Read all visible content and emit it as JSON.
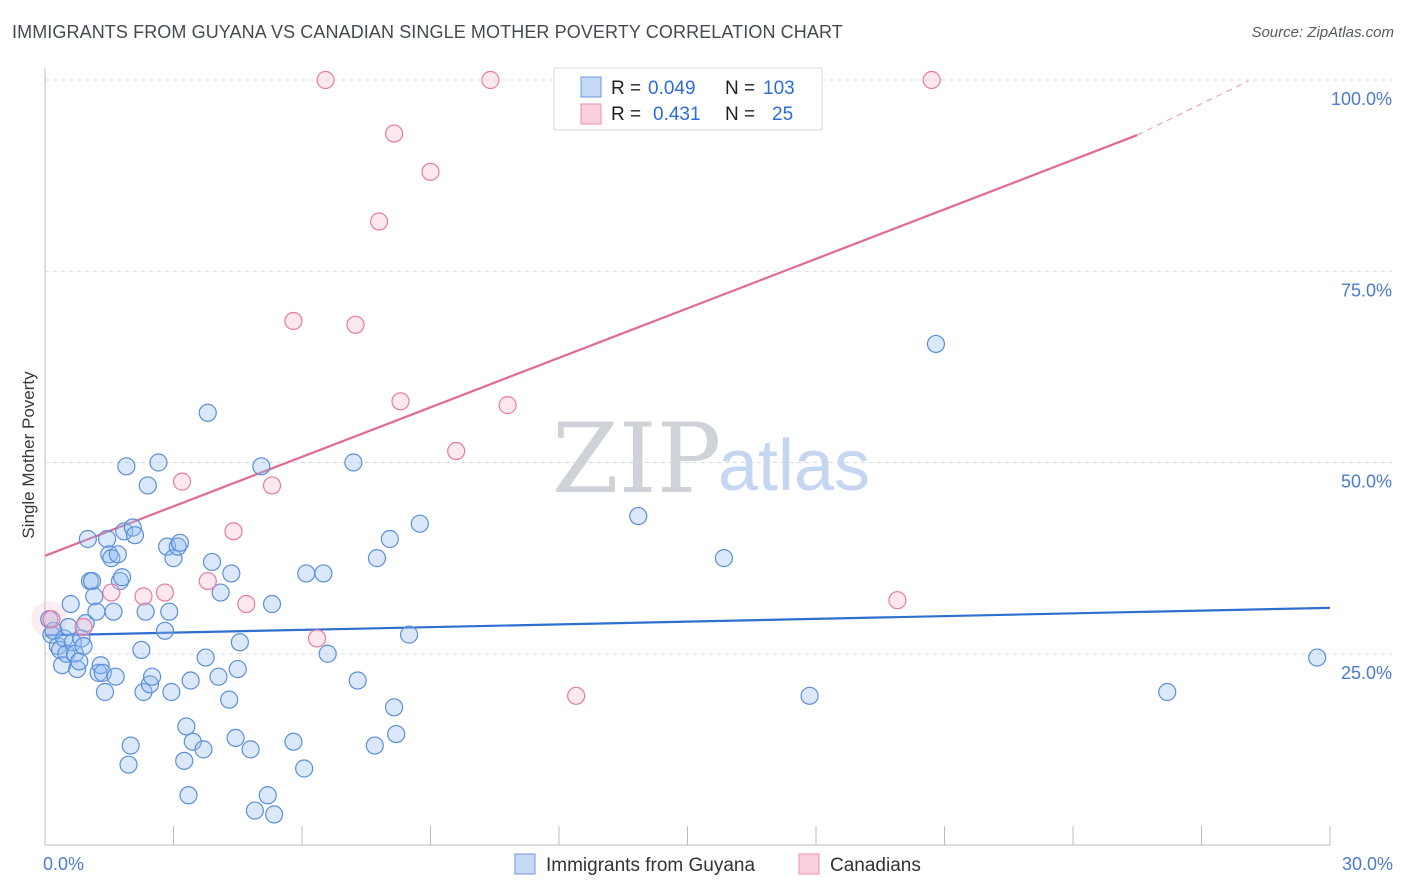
{
  "title": "IMMIGRANTS FROM GUYANA VS CANADIAN SINGLE MOTHER POVERTY CORRELATION CHART",
  "source": "Source: ZipAtlas.com",
  "watermark": {
    "zip": "ZIP",
    "atlas": "atlas"
  },
  "legend_stats": [
    {
      "r_label": "R =",
      "r_value": "0.049",
      "n_label": "N =",
      "n_value": "103"
    },
    {
      "r_label": "R =",
      "r_value": "0.431",
      "n_label": "N =",
      "n_value": "25"
    }
  ],
  "chart_data": {
    "type": "scatter",
    "title": "IMMIGRANTS FROM GUYANA VS CANADIAN SINGLE MOTHER POVERTY CORRELATION CHART",
    "xlabel": "",
    "ylabel": "Single Mother Poverty",
    "xlim": [
      0,
      30
    ],
    "ylim": [
      0,
      100
    ],
    "x_tick_labels": [
      "0.0%",
      "30.0%"
    ],
    "y_tick_labels": [
      "25.0%",
      "50.0%",
      "75.0%",
      "100.0%"
    ],
    "y_ticks": [
      25,
      50,
      75,
      100
    ],
    "grid": true,
    "legend_position": "bottom",
    "colors": {
      "guyana": "#5b8fd9",
      "canadians": "#e87aa0",
      "guyana_line": "#2f6fcf",
      "canadians_line": "#e06a94"
    },
    "series": [
      {
        "name": "Immigrants from Guyana",
        "color": "#5b8fd9",
        "trend": {
          "x": [
            0,
            30
          ],
          "y": [
            27.4,
            31.0
          ]
        },
        "points": [
          [
            0.1,
            29.5
          ],
          [
            0.15,
            27.5
          ],
          [
            0.2,
            28.0
          ],
          [
            0.3,
            26.0
          ],
          [
            0.35,
            25.5
          ],
          [
            0.4,
            23.5
          ],
          [
            0.45,
            27.0
          ],
          [
            0.5,
            25.0
          ],
          [
            0.55,
            28.5
          ],
          [
            0.6,
            31.5
          ],
          [
            0.65,
            26.5
          ],
          [
            0.7,
            25.0
          ],
          [
            0.75,
            23.0
          ],
          [
            0.8,
            24.0
          ],
          [
            0.85,
            27.0
          ],
          [
            0.9,
            26.0
          ],
          [
            0.95,
            29.0
          ],
          [
            1.0,
            40.0
          ],
          [
            1.05,
            34.5
          ],
          [
            1.1,
            34.5
          ],
          [
            1.15,
            32.5
          ],
          [
            1.2,
            30.5
          ],
          [
            1.25,
            22.5
          ],
          [
            1.3,
            23.5
          ],
          [
            1.35,
            22.5
          ],
          [
            1.4,
            20.0
          ],
          [
            1.45,
            40.0
          ],
          [
            1.5,
            38.0
          ],
          [
            1.55,
            37.5
          ],
          [
            1.6,
            30.5
          ],
          [
            1.65,
            22.0
          ],
          [
            1.7,
            38.0
          ],
          [
            1.75,
            34.5
          ],
          [
            1.8,
            35.0
          ],
          [
            1.85,
            41.0
          ],
          [
            1.9,
            49.5
          ],
          [
            1.95,
            10.5
          ],
          [
            2.0,
            13.0
          ],
          [
            2.05,
            41.5
          ],
          [
            2.1,
            40.5
          ],
          [
            2.25,
            25.5
          ],
          [
            2.3,
            20.0
          ],
          [
            2.35,
            30.5
          ],
          [
            2.4,
            47.0
          ],
          [
            2.45,
            21.0
          ],
          [
            2.5,
            22.0
          ],
          [
            2.65,
            50.0
          ],
          [
            2.8,
            28.0
          ],
          [
            2.85,
            39.0
          ],
          [
            2.9,
            30.5
          ],
          [
            2.95,
            20.0
          ],
          [
            3.0,
            37.5
          ],
          [
            3.1,
            39.0
          ],
          [
            3.15,
            39.5
          ],
          [
            3.25,
            11.0
          ],
          [
            3.3,
            15.5
          ],
          [
            3.35,
            6.5
          ],
          [
            3.4,
            21.5
          ],
          [
            3.45,
            13.5
          ],
          [
            3.7,
            12.5
          ],
          [
            3.75,
            24.5
          ],
          [
            3.8,
            56.5
          ],
          [
            3.9,
            37.0
          ],
          [
            4.05,
            22.0
          ],
          [
            4.1,
            33.0
          ],
          [
            4.3,
            19.0
          ],
          [
            4.35,
            35.5
          ],
          [
            4.45,
            14.0
          ],
          [
            4.5,
            23.0
          ],
          [
            4.55,
            26.5
          ],
          [
            4.8,
            12.5
          ],
          [
            4.9,
            4.5
          ],
          [
            5.05,
            49.5
          ],
          [
            5.2,
            6.5
          ],
          [
            5.3,
            31.5
          ],
          [
            5.35,
            4.0
          ],
          [
            5.8,
            13.5
          ],
          [
            6.05,
            10.0
          ],
          [
            6.1,
            35.5
          ],
          [
            6.5,
            35.5
          ],
          [
            6.6,
            25.0
          ],
          [
            7.2,
            50.0
          ],
          [
            7.3,
            21.5
          ],
          [
            7.7,
            13.0
          ],
          [
            7.75,
            37.5
          ],
          [
            8.05,
            40.0
          ],
          [
            8.15,
            18.0
          ],
          [
            8.2,
            14.5
          ],
          [
            8.5,
            27.5
          ],
          [
            8.75,
            42.0
          ],
          [
            13.85,
            43.0
          ],
          [
            15.85,
            37.5
          ],
          [
            17.85,
            19.5
          ],
          [
            20.8,
            65.5
          ],
          [
            26.2,
            20.0
          ],
          [
            29.7,
            24.5
          ]
        ]
      },
      {
        "name": "Canadians",
        "color": "#e87aa0",
        "trend": {
          "x": [
            0,
            25.5
          ],
          "y": [
            37.8,
            92.8
          ]
        },
        "trend_dashed": {
          "x": [
            25.5,
            28.1
          ],
          "y": [
            92.8,
            99.9
          ]
        },
        "points": [
          [
            0.15,
            29.5
          ],
          [
            0.9,
            28.5
          ],
          [
            1.55,
            33.0
          ],
          [
            2.3,
            32.5
          ],
          [
            2.8,
            33.0
          ],
          [
            3.2,
            47.5
          ],
          [
            3.8,
            34.5
          ],
          [
            4.4,
            41.0
          ],
          [
            4.7,
            31.5
          ],
          [
            5.3,
            47.0
          ],
          [
            5.8,
            68.5
          ],
          [
            6.35,
            27.0
          ],
          [
            6.55,
            100.0
          ],
          [
            7.25,
            68.0
          ],
          [
            7.8,
            81.5
          ],
          [
            8.15,
            93.0
          ],
          [
            8.3,
            58.0
          ],
          [
            9.0,
            88.0
          ],
          [
            9.6,
            51.5
          ],
          [
            10.4,
            100.0
          ],
          [
            10.8,
            57.5
          ],
          [
            12.4,
            19.5
          ],
          [
            19.9,
            32.0
          ],
          [
            20.7,
            100.0
          ]
        ]
      }
    ]
  },
  "bottom_legend": [
    {
      "label": "Immigrants from Guyana"
    },
    {
      "label": "Canadians"
    }
  ]
}
